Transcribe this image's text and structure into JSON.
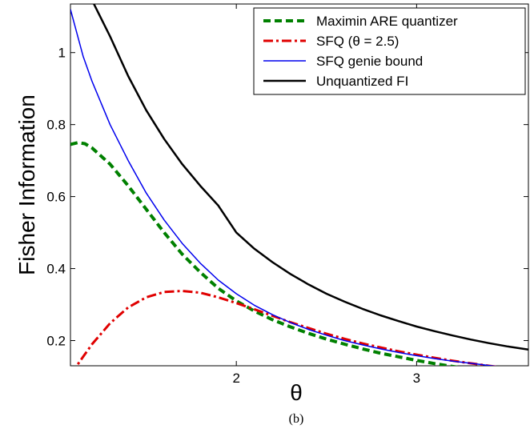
{
  "chart_data": {
    "type": "line",
    "title": "",
    "xlabel": "θ",
    "ylabel": "Fisher Information",
    "caption": "(b)",
    "xlim": [
      1.08,
      3.62
    ],
    "ylim": [
      0.13,
      1.135
    ],
    "xticks": [
      2,
      3
    ],
    "xtick_labels": [
      "2",
      "3"
    ],
    "yticks": [
      0.2,
      0.4,
      0.6,
      0.8,
      1.0
    ],
    "ytick_labels": [
      "0.2",
      "0.4",
      "0.6",
      "0.8",
      "1"
    ],
    "grid": false,
    "legend_position": "top-right",
    "series": [
      {
        "name": "Maximin ARE quantizer",
        "color": "#008000",
        "dash": "dashed",
        "width": 4,
        "points": [
          [
            1.08,
            0.745
          ],
          [
            1.12,
            0.75
          ],
          [
            1.16,
            0.747
          ],
          [
            1.2,
            0.735
          ],
          [
            1.3,
            0.69
          ],
          [
            1.4,
            0.63
          ],
          [
            1.5,
            0.565
          ],
          [
            1.6,
            0.5
          ],
          [
            1.7,
            0.44
          ],
          [
            1.8,
            0.39
          ],
          [
            1.9,
            0.345
          ],
          [
            2.0,
            0.31
          ],
          [
            2.1,
            0.282
          ],
          [
            2.2,
            0.258
          ],
          [
            2.3,
            0.238
          ],
          [
            2.4,
            0.22
          ],
          [
            2.5,
            0.204
          ],
          [
            2.6,
            0.19
          ],
          [
            2.7,
            0.177
          ],
          [
            2.8,
            0.165
          ],
          [
            2.9,
            0.155
          ],
          [
            3.0,
            0.145
          ],
          [
            3.1,
            0.136
          ],
          [
            3.2,
            0.128
          ],
          [
            3.3,
            0.121
          ],
          [
            3.4,
            0.114
          ],
          [
            3.5,
            0.108
          ],
          [
            3.62,
            0.102
          ]
        ]
      },
      {
        "name": "SFQ (θ = 2.5)",
        "color": "#e00000",
        "dash": "dashdot",
        "width": 3,
        "points": [
          [
            1.08,
            0.105
          ],
          [
            1.15,
            0.155
          ],
          [
            1.2,
            0.19
          ],
          [
            1.3,
            0.248
          ],
          [
            1.4,
            0.292
          ],
          [
            1.5,
            0.32
          ],
          [
            1.6,
            0.335
          ],
          [
            1.7,
            0.338
          ],
          [
            1.8,
            0.333
          ],
          [
            1.9,
            0.32
          ],
          [
            2.0,
            0.304
          ],
          [
            2.1,
            0.287
          ],
          [
            2.2,
            0.269
          ],
          [
            2.3,
            0.251
          ],
          [
            2.4,
            0.235
          ],
          [
            2.5,
            0.219
          ],
          [
            2.6,
            0.205
          ],
          [
            2.7,
            0.192
          ],
          [
            2.8,
            0.181
          ],
          [
            2.9,
            0.17
          ],
          [
            3.0,
            0.161
          ],
          [
            3.1,
            0.152
          ],
          [
            3.2,
            0.144
          ],
          [
            3.3,
            0.137
          ],
          [
            3.4,
            0.13
          ],
          [
            3.5,
            0.124
          ],
          [
            3.62,
            0.118
          ]
        ]
      },
      {
        "name": "SFQ genie bound",
        "color": "#0000ee",
        "dash": "solid",
        "width": 1.5,
        "points": [
          [
            1.08,
            1.12
          ],
          [
            1.15,
            0.99
          ],
          [
            1.2,
            0.92
          ],
          [
            1.3,
            0.8
          ],
          [
            1.4,
            0.7
          ],
          [
            1.5,
            0.61
          ],
          [
            1.6,
            0.535
          ],
          [
            1.7,
            0.47
          ],
          [
            1.8,
            0.415
          ],
          [
            1.9,
            0.368
          ],
          [
            2.0,
            0.33
          ],
          [
            2.1,
            0.298
          ],
          [
            2.2,
            0.272
          ],
          [
            2.3,
            0.25
          ],
          [
            2.4,
            0.231
          ],
          [
            2.5,
            0.215
          ],
          [
            2.6,
            0.2
          ],
          [
            2.7,
            0.188
          ],
          [
            2.8,
            0.177
          ],
          [
            2.9,
            0.167
          ],
          [
            3.0,
            0.158
          ],
          [
            3.1,
            0.15
          ],
          [
            3.2,
            0.143
          ],
          [
            3.3,
            0.137
          ],
          [
            3.4,
            0.131
          ],
          [
            3.5,
            0.125
          ],
          [
            3.62,
            0.12
          ]
        ]
      },
      {
        "name": "Unquantized FI",
        "color": "#000000",
        "dash": "solid",
        "width": 2.5,
        "points": [
          [
            1.21,
            1.135
          ],
          [
            1.3,
            1.045
          ],
          [
            1.4,
            0.935
          ],
          [
            1.5,
            0.84
          ],
          [
            1.6,
            0.76
          ],
          [
            1.7,
            0.69
          ],
          [
            1.8,
            0.63
          ],
          [
            1.9,
            0.575
          ],
          [
            2.0,
            0.5
          ],
          [
            2.1,
            0.455
          ],
          [
            2.2,
            0.418
          ],
          [
            2.3,
            0.385
          ],
          [
            2.4,
            0.356
          ],
          [
            2.5,
            0.33
          ],
          [
            2.6,
            0.308
          ],
          [
            2.7,
            0.288
          ],
          [
            2.8,
            0.27
          ],
          [
            2.9,
            0.254
          ],
          [
            3.0,
            0.239
          ],
          [
            3.1,
            0.226
          ],
          [
            3.2,
            0.214
          ],
          [
            3.3,
            0.203
          ],
          [
            3.4,
            0.193
          ],
          [
            3.5,
            0.184
          ],
          [
            3.62,
            0.175
          ]
        ]
      }
    ]
  }
}
